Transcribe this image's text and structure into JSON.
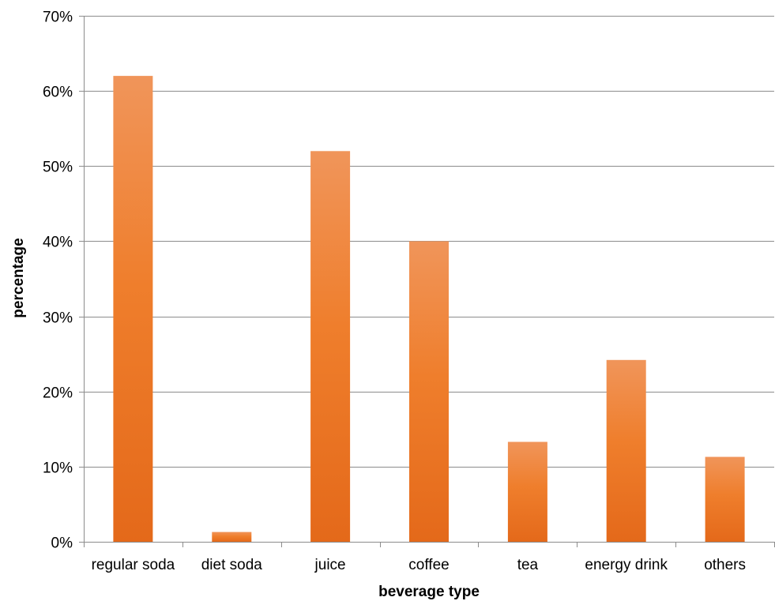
{
  "chart_data": {
    "type": "bar",
    "title": "",
    "xlabel": "beverage type",
    "ylabel": "percentage",
    "categories": [
      "regular soda",
      "diet soda",
      "juice",
      "coffee",
      "tea",
      "energy drink",
      "others"
    ],
    "values": [
      62,
      1.3,
      52,
      40,
      13.3,
      24.2,
      11.3
    ],
    "ylim": [
      0,
      70
    ],
    "yticks": [
      0,
      10,
      20,
      30,
      40,
      50,
      60,
      70
    ],
    "ytick_labels": [
      "0%",
      "10%",
      "20%",
      "30%",
      "40%",
      "50%",
      "60%",
      "70%"
    ],
    "grid": true,
    "legend": "none",
    "colors": {
      "bar_top": "#f0955a",
      "bar_mid": "#ef7e2c",
      "bar_bottom": "#e4691a",
      "grid": "#8c8c8c",
      "axis": "#8c8c8c",
      "text": "#000000"
    }
  }
}
